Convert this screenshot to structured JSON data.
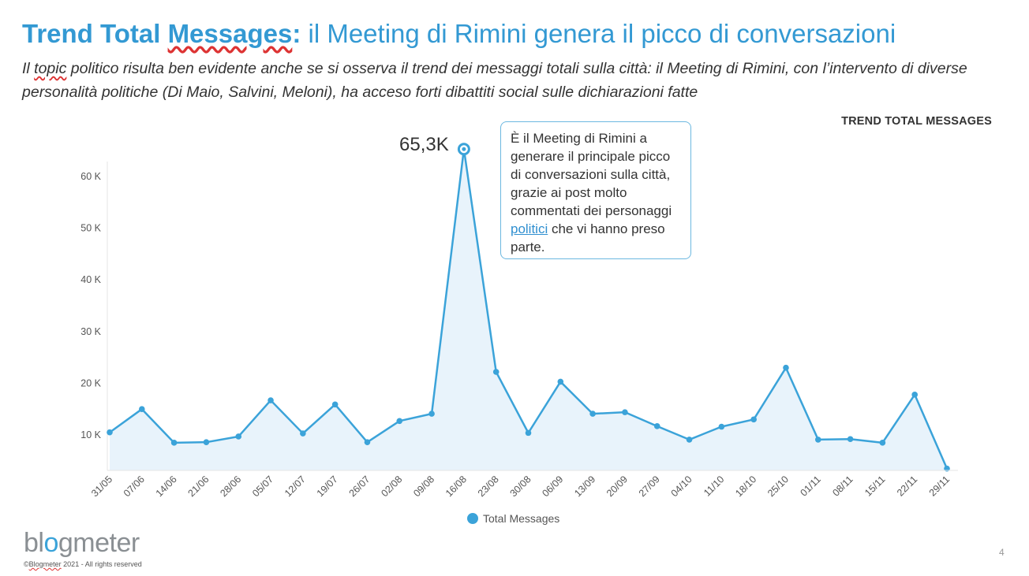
{
  "header": {
    "title_bold_part1": "Trend Total ",
    "title_bold_underlined": "Messages",
    "title_bold_colon": ":",
    "title_rest": " il Meeting di Rimini genera il picco di conversazioni",
    "subtitle_prefix": "Il ",
    "subtitle_underlined": "topic",
    "subtitle_rest": " politico risulta ben evidente anche se si osserva il trend dei messaggi totali sulla città: il Meeting di Rimini, con l’intervento di diverse personalità politiche (Di Maio, Salvini, Meloni), ha acceso forti dibattiti social sulle dichiarazioni fatte"
  },
  "chart_label": "TREND TOTAL MESSAGES",
  "peak_label": "65,3K",
  "callout": {
    "text_before_link": "È il Meeting di Rimini a generare il principale picco di conversazioni sulla città, grazie ai post molto commentati dei personaggi ",
    "link_text": "politici",
    "text_after_link": " che vi hanno preso parte."
  },
  "footer": {
    "logo_part1": "bl",
    "logo_accent": "o",
    "logo_part2": "gmeter",
    "copyright_prefix": "©",
    "copyright_underlined": "Blogmeter",
    "copyright_rest": " 2021 - All rights reserved",
    "page_number": "4"
  },
  "colors": {
    "title_blue": "#3399d3",
    "series_line": "#3ba3d9",
    "series_fill": "#e8f3fb",
    "axis_text": "#555555"
  },
  "chart_data": {
    "type": "area",
    "title": "TREND TOTAL MESSAGES",
    "xlabel": "",
    "ylabel": "",
    "ylim": [
      0,
      65300
    ],
    "yticks": [
      10000,
      20000,
      30000,
      40000,
      50000,
      60000
    ],
    "ytick_labels": [
      "10 K",
      "20 K",
      "30 K",
      "40 K",
      "50 K",
      "60 K"
    ],
    "grid": false,
    "legend_position": "bottom-center",
    "categories": [
      "31/05",
      "07/06",
      "14/06",
      "21/06",
      "28/06",
      "05/07",
      "12/07",
      "19/07",
      "26/07",
      "02/08",
      "09/08",
      "16/08",
      "23/08",
      "30/08",
      "06/09",
      "13/09",
      "20/09",
      "27/09",
      "04/10",
      "11/10",
      "18/10",
      "25/10",
      "01/11",
      "08/11",
      "15/11",
      "22/11",
      "29/11"
    ],
    "series": [
      {
        "name": "Total Messages",
        "values": [
          10500,
          15000,
          8500,
          8600,
          9700,
          16700,
          10300,
          15900,
          8600,
          12700,
          14100,
          65300,
          22200,
          10400,
          20300,
          14100,
          14400,
          11700,
          9100,
          11600,
          13000,
          23000,
          9100,
          9200,
          8500,
          17800,
          3500
        ]
      }
    ],
    "annotations": [
      {
        "category": "16/08",
        "text": "65,3K"
      }
    ]
  }
}
